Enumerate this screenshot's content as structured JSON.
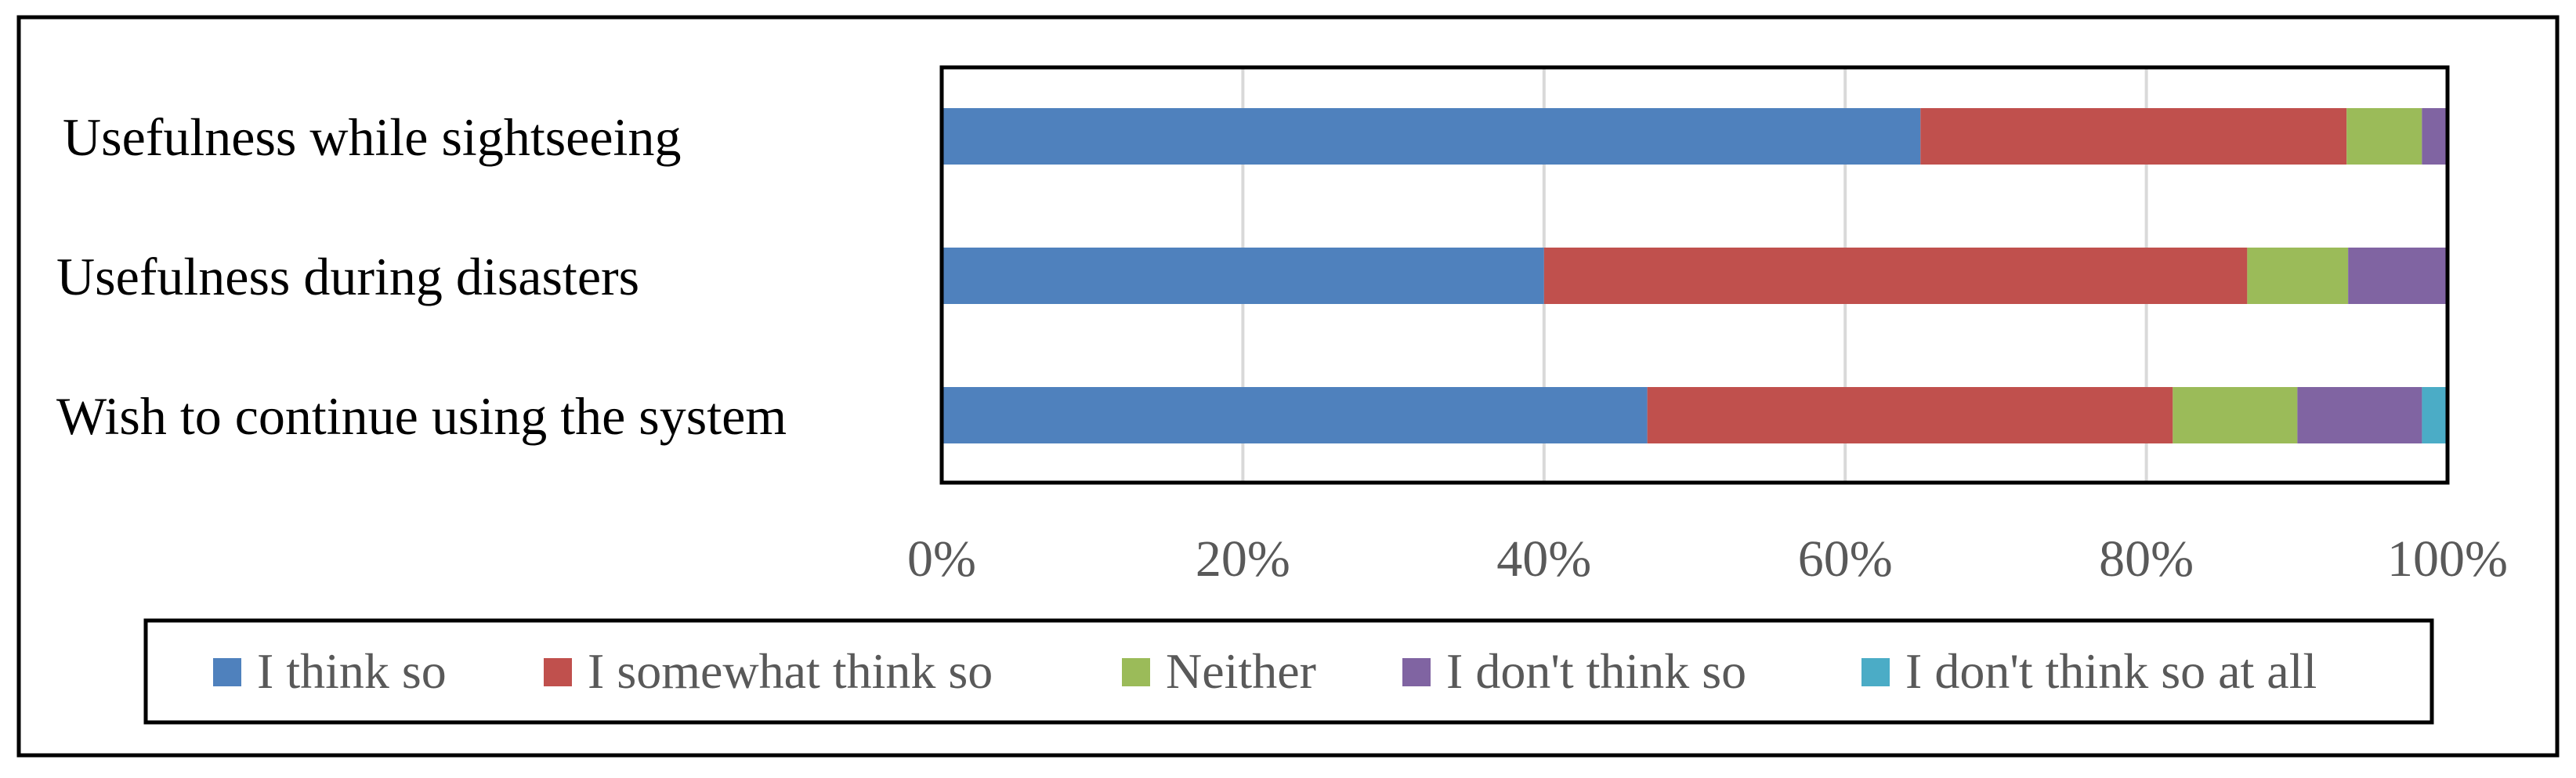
{
  "chart_data": {
    "type": "bar",
    "orientation": "horizontal",
    "stacked": "percent",
    "categories": [
      "Usefulness while sightseeing",
      "Usefulness during disasters",
      "Wish to continue using the system"
    ],
    "series": [
      {
        "name": "I think so",
        "values": [
          65,
          40,
          47
        ],
        "color": "#4F81BD"
      },
      {
        "name": "I somewhat think so",
        "values": [
          28.3,
          46.7,
          35
        ],
        "color": "#C0504D"
      },
      {
        "name": "Neither",
        "values": [
          5,
          6.7,
          8.3
        ],
        "color": "#9BBB59"
      },
      {
        "name": "I don't think so",
        "values": [
          1.7,
          6.6,
          8.3
        ],
        "color": "#8064A2"
      },
      {
        "name": "I don't think so at all",
        "values": [
          0,
          0,
          1.7
        ],
        "color": "#4BACC6"
      }
    ],
    "x_ticks": [
      "0%",
      "20%",
      "40%",
      "60%",
      "80%",
      "100%"
    ],
    "xlim": [
      0,
      100
    ],
    "grid": "vertical",
    "legend_position": "bottom",
    "title": "",
    "xlabel": "",
    "ylabel": ""
  }
}
